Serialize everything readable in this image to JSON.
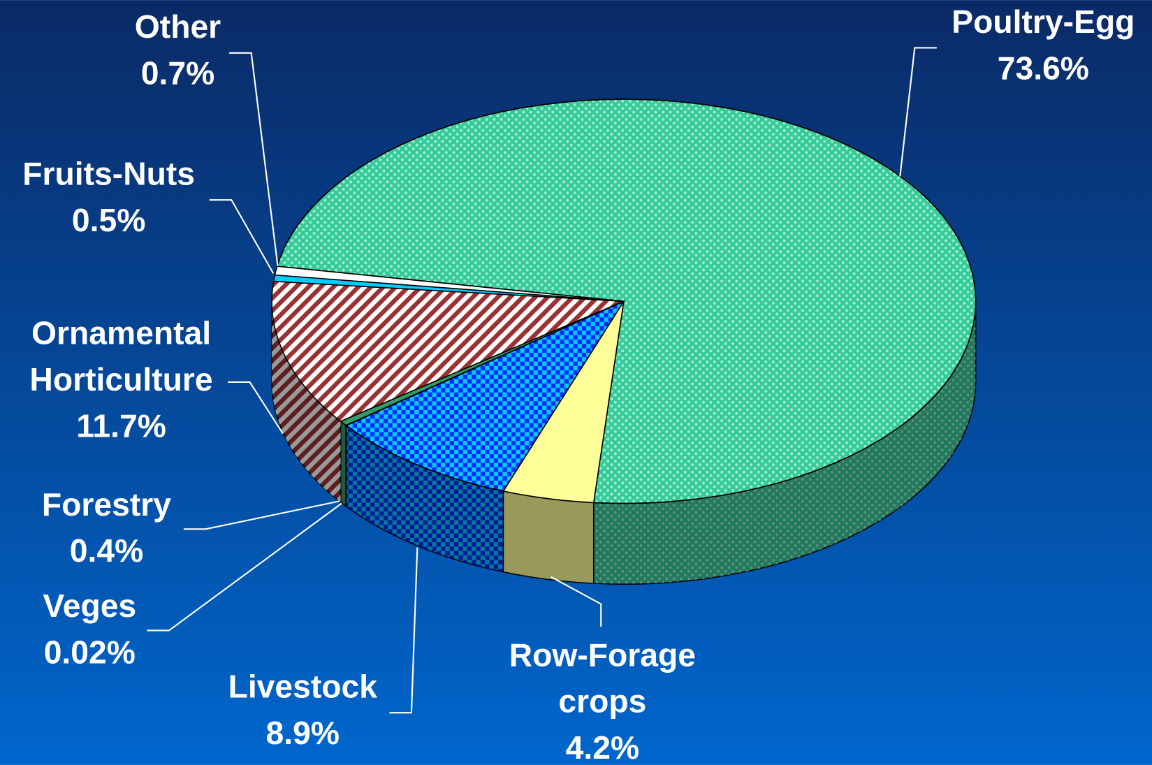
{
  "chart_data": {
    "type": "pie",
    "categories": [
      "Poultry-Egg",
      "Row-Forage crops",
      "Livestock",
      "Veges",
      "Forestry",
      "Ornamental Horticulture",
      "Fruits-Nuts",
      "Other"
    ],
    "values": [
      73.6,
      4.2,
      8.9,
      0.02,
      0.4,
      11.7,
      0.5,
      0.7
    ],
    "value_labels": [
      "73.6%",
      "4.2%",
      "8.9%",
      "0.02%",
      "0.4%",
      "11.7%",
      "0.5%",
      "0.7%"
    ],
    "colors": [
      "#33cc99",
      "#ffff99",
      "#00ccff",
      "#006633",
      "#339966",
      "#993333",
      "#00ccff",
      "#ffffff"
    ]
  }
}
